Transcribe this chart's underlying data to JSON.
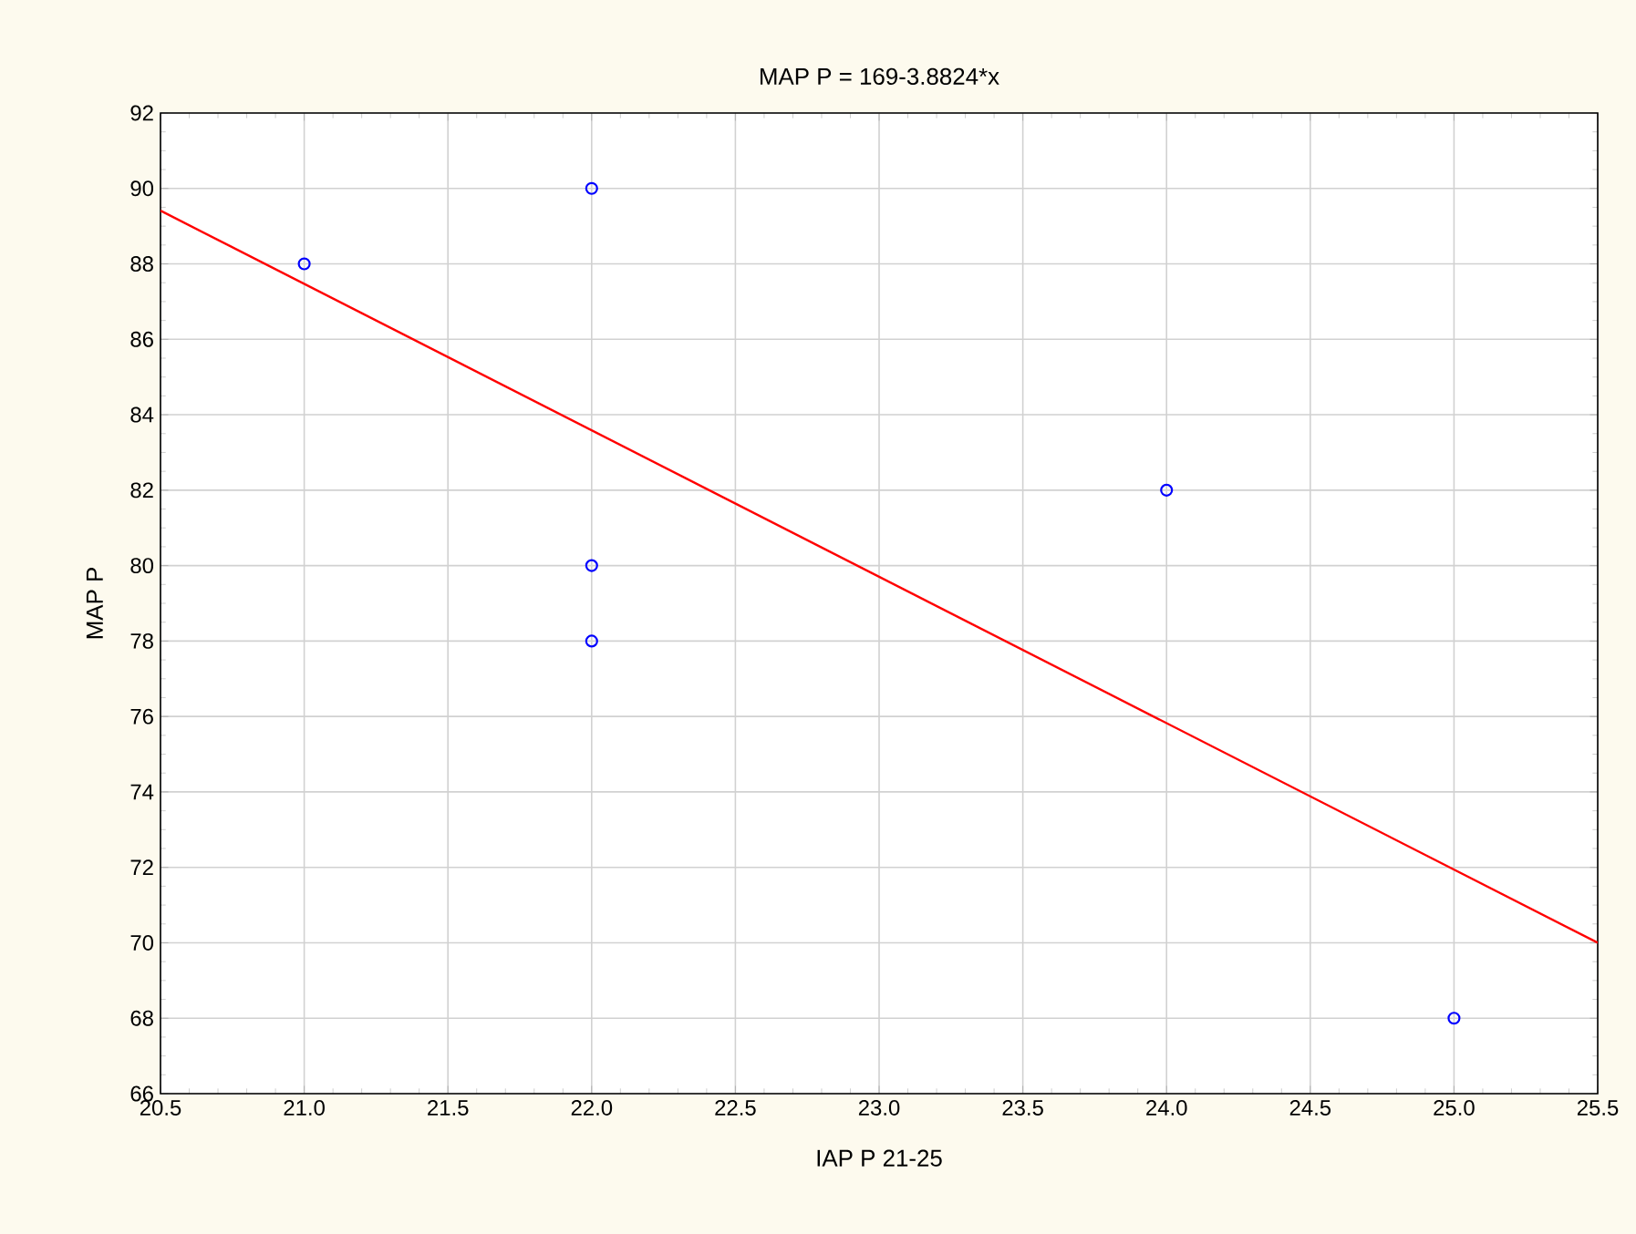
{
  "chart_data": {
    "type": "scatter",
    "title": "MAP P = 169-3.8824*x",
    "xlabel": "IAP P 21-25",
    "ylabel": "MAP P",
    "xlim": [
      20.5,
      25.5
    ],
    "ylim": [
      66,
      92
    ],
    "xticks": [
      20.5,
      {
        "value": 21,
        "label": "21.0"
      },
      21.5,
      {
        "value": 22,
        "label": "22.0"
      },
      22.5,
      {
        "value": 23,
        "label": "23.0"
      },
      23.5,
      {
        "value": 24,
        "label": "24.0"
      },
      24.5,
      {
        "value": 25,
        "label": "25.0"
      },
      25.5
    ],
    "yticks": [
      66,
      68,
      70,
      72,
      74,
      76,
      78,
      80,
      82,
      84,
      86,
      88,
      90,
      92
    ],
    "grid": true,
    "series": [
      {
        "color": "#0000ff",
        "marker": "circle",
        "x": [
          21,
          22,
          22,
          22,
          24,
          25
        ],
        "values": [
          88,
          90,
          80,
          78,
          82,
          68
        ]
      },
      {
        "type": "line",
        "color": "#ff0000",
        "marker": "none",
        "line_style": "solid",
        "x": [
          20.5,
          25.5
        ],
        "values": [
          89.41,
          70.0
        ]
      }
    ]
  }
}
